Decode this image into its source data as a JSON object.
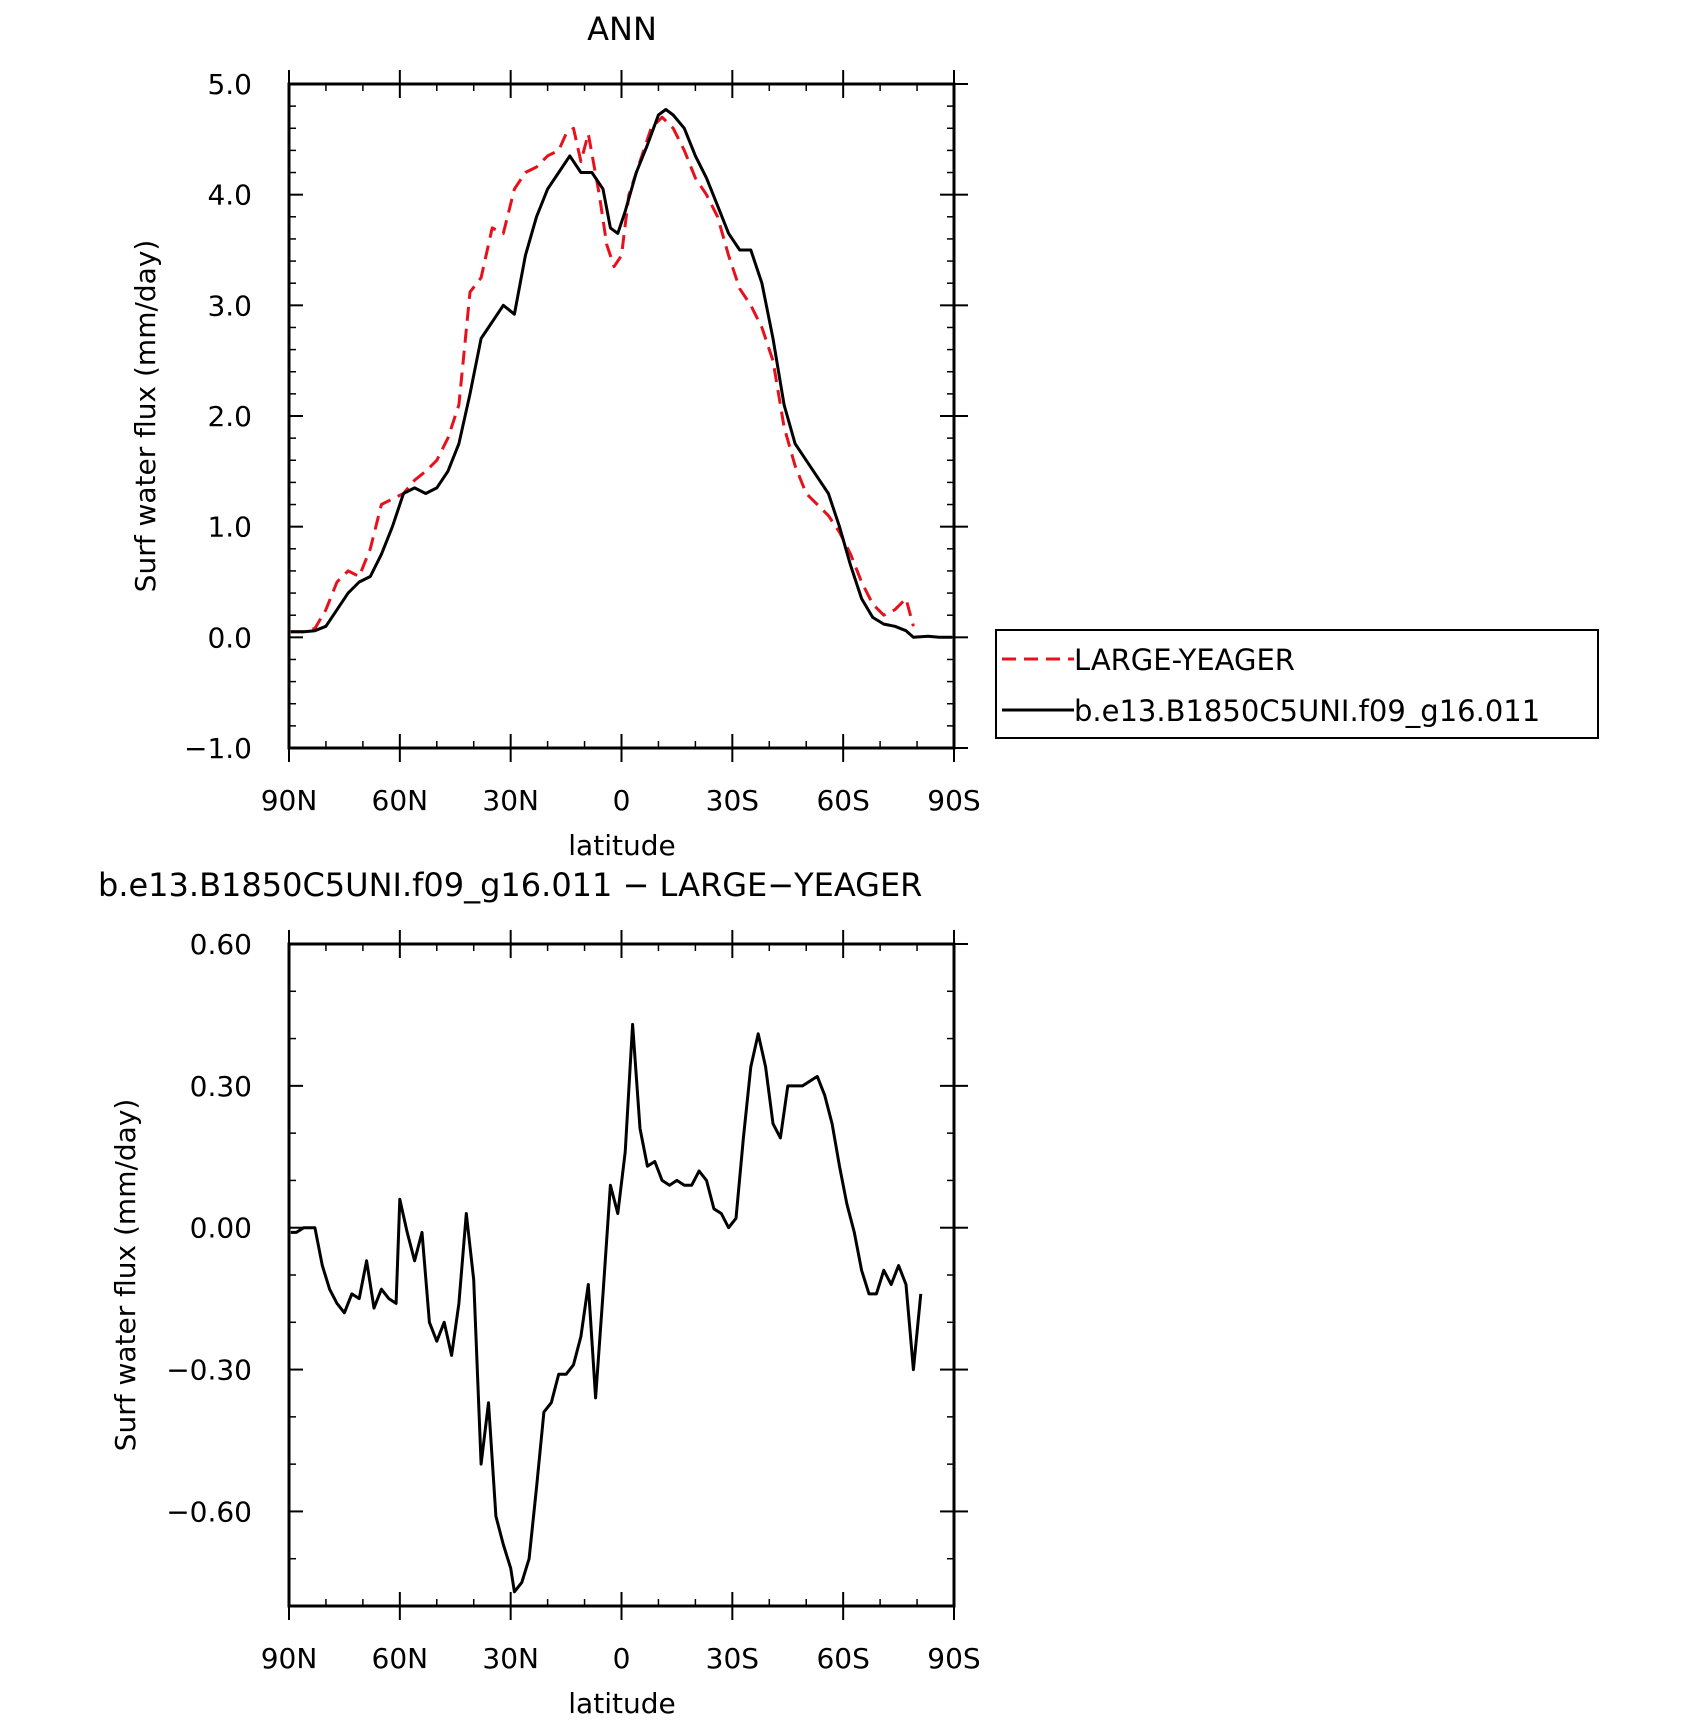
{
  "chart_data": [
    {
      "type": "line",
      "title": "ANN",
      "xlabel": "latitude",
      "ylabel": "Surf water flux (mm/day)",
      "xlim": [
        90,
        -90
      ],
      "ylim": [
        -1.0,
        5.0
      ],
      "grid": false,
      "legend_position": "right",
      "x_ticks": [
        {
          "value": 90,
          "label": "90N"
        },
        {
          "value": 60,
          "label": "60N"
        },
        {
          "value": 30,
          "label": "30N"
        },
        {
          "value": 0,
          "label": "0"
        },
        {
          "value": -30,
          "label": "30S"
        },
        {
          "value": -60,
          "label": "60S"
        },
        {
          "value": -90,
          "label": "90S"
        }
      ],
      "y_ticks": [
        {
          "value": 5.0,
          "label": "5.0"
        },
        {
          "value": 4.0,
          "label": "4.0"
        },
        {
          "value": 3.0,
          "label": "3.0"
        },
        {
          "value": 2.0,
          "label": "2.0"
        },
        {
          "value": 1.0,
          "label": "1.0"
        },
        {
          "value": 0.0,
          "label": "0.0"
        },
        {
          "value": -1.0,
          "label": "−1.0"
        }
      ],
      "series": [
        {
          "name": "LARGE-YEAGER",
          "color": "#e8111b",
          "dash": "dashed",
          "points": [
            [
              89.5,
              0.05
            ],
            [
              86,
              0.05
            ],
            [
              83,
              0.08
            ],
            [
              80,
              0.25
            ],
            [
              77,
              0.5
            ],
            [
              74,
              0.6
            ],
            [
              71,
              0.55
            ],
            [
              68,
              0.8
            ],
            [
              65,
              1.2
            ],
            [
              62,
              1.25
            ],
            [
              59,
              1.3
            ],
            [
              56,
              1.42
            ],
            [
              53,
              1.5
            ],
            [
              50,
              1.6
            ],
            [
              47,
              1.8
            ],
            [
              44,
              2.1
            ],
            [
              41,
              3.12
            ],
            [
              38,
              3.25
            ],
            [
              35,
              3.7
            ],
            [
              32,
              3.65
            ],
            [
              29,
              4.05
            ],
            [
              26,
              4.2
            ],
            [
              23,
              4.25
            ],
            [
              20,
              4.35
            ],
            [
              17,
              4.4
            ],
            [
              15,
              4.55
            ],
            [
              13,
              4.6
            ],
            [
              11,
              4.3
            ],
            [
              9,
              4.55
            ],
            [
              6,
              4.0
            ],
            [
              4,
              3.55
            ],
            [
              2,
              3.35
            ],
            [
              0,
              3.45
            ],
            [
              -2,
              4.0
            ],
            [
              -5,
              4.3
            ],
            [
              -8,
              4.6
            ],
            [
              -11,
              4.7
            ],
            [
              -14,
              4.6
            ],
            [
              -17,
              4.4
            ],
            [
              -20,
              4.15
            ],
            [
              -23,
              4.0
            ],
            [
              -26,
              3.8
            ],
            [
              -29,
              3.45
            ],
            [
              -32,
              3.15
            ],
            [
              -35,
              3.0
            ],
            [
              -38,
              2.8
            ],
            [
              -41,
              2.5
            ],
            [
              -44,
              1.9
            ],
            [
              -47,
              1.55
            ],
            [
              -50,
              1.3
            ],
            [
              -53,
              1.2
            ],
            [
              -56,
              1.1
            ],
            [
              -59,
              0.95
            ],
            [
              -62,
              0.75
            ],
            [
              -65,
              0.5
            ],
            [
              -68,
              0.3
            ],
            [
              -71,
              0.2
            ],
            [
              -74,
              0.25
            ],
            [
              -77,
              0.35
            ],
            [
              -79,
              0.1
            ]
          ]
        },
        {
          "name": "b.e13.B1850C5UNI.f09_g16.011",
          "color": "#000000",
          "dash": "solid",
          "points": [
            [
              89.5,
              0.05
            ],
            [
              86,
              0.05
            ],
            [
              83,
              0.06
            ],
            [
              80,
              0.1
            ],
            [
              77,
              0.25
            ],
            [
              74,
              0.4
            ],
            [
              71,
              0.5
            ],
            [
              68,
              0.55
            ],
            [
              65,
              0.75
            ],
            [
              62,
              1.0
            ],
            [
              59,
              1.3
            ],
            [
              56,
              1.35
            ],
            [
              53,
              1.3
            ],
            [
              50,
              1.35
            ],
            [
              47,
              1.5
            ],
            [
              44,
              1.75
            ],
            [
              41,
              2.2
            ],
            [
              38,
              2.7
            ],
            [
              35,
              2.85
            ],
            [
              32,
              3.0
            ],
            [
              29,
              2.92
            ],
            [
              26,
              3.45
            ],
            [
              23,
              3.8
            ],
            [
              20,
              4.05
            ],
            [
              17,
              4.2
            ],
            [
              14,
              4.35
            ],
            [
              11,
              4.2
            ],
            [
              8,
              4.2
            ],
            [
              5,
              4.05
            ],
            [
              3,
              3.7
            ],
            [
              1,
              3.65
            ],
            [
              -1,
              3.85
            ],
            [
              -4,
              4.2
            ],
            [
              -7,
              4.45
            ],
            [
              -10,
              4.72
            ],
            [
              -12,
              4.77
            ],
            [
              -14,
              4.72
            ],
            [
              -17,
              4.6
            ],
            [
              -20,
              4.35
            ],
            [
              -23,
              4.15
            ],
            [
              -26,
              3.9
            ],
            [
              -29,
              3.65
            ],
            [
              -32,
              3.5
            ],
            [
              -35,
              3.5
            ],
            [
              -38,
              3.2
            ],
            [
              -41,
              2.7
            ],
            [
              -44,
              2.1
            ],
            [
              -47,
              1.75
            ],
            [
              -50,
              1.6
            ],
            [
              -53,
              1.45
            ],
            [
              -56,
              1.3
            ],
            [
              -59,
              1.0
            ],
            [
              -62,
              0.65
            ],
            [
              -65,
              0.35
            ],
            [
              -68,
              0.18
            ],
            [
              -71,
              0.12
            ],
            [
              -74,
              0.1
            ],
            [
              -77,
              0.06
            ],
            [
              -79,
              0.0
            ],
            [
              -83,
              0.01
            ],
            [
              -86,
              0.0
            ],
            [
              -89.5,
              0.0
            ]
          ]
        }
      ]
    },
    {
      "type": "line",
      "title": "b.e13.B1850C5UNI.f09_g16.011 − LARGE−YEAGER",
      "xlabel": "latitude",
      "ylabel": "Surf water flux (mm/day)",
      "xlim": [
        90,
        -90
      ],
      "ylim": [
        -0.8,
        0.6
      ],
      "grid": false,
      "x_ticks": [
        {
          "value": 90,
          "label": "90N"
        },
        {
          "value": 60,
          "label": "60N"
        },
        {
          "value": 30,
          "label": "30N"
        },
        {
          "value": 0,
          "label": "0"
        },
        {
          "value": -30,
          "label": "30S"
        },
        {
          "value": -60,
          "label": "60S"
        },
        {
          "value": -90,
          "label": "90S"
        }
      ],
      "y_ticks": [
        {
          "value": 0.6,
          "label": "0.60"
        },
        {
          "value": 0.3,
          "label": "0.30"
        },
        {
          "value": 0.0,
          "label": "0.00"
        },
        {
          "value": -0.3,
          "label": "−0.30"
        },
        {
          "value": -0.6,
          "label": "−0.60"
        }
      ],
      "series": [
        {
          "color": "#000000",
          "dash": "solid",
          "points": [
            [
              89.5,
              -0.01
            ],
            [
              88,
              -0.01
            ],
            [
              86,
              0.0
            ],
            [
              83,
              0.0
            ],
            [
              81,
              -0.08
            ],
            [
              79,
              -0.13
            ],
            [
              77,
              -0.16
            ],
            [
              75,
              -0.18
            ],
            [
              73,
              -0.14
            ],
            [
              71,
              -0.15
            ],
            [
              69,
              -0.07
            ],
            [
              67,
              -0.17
            ],
            [
              65,
              -0.13
            ],
            [
              63,
              -0.15
            ],
            [
              61,
              -0.16
            ],
            [
              60,
              0.06
            ],
            [
              58,
              -0.01
            ],
            [
              56,
              -0.07
            ],
            [
              54,
              -0.01
            ],
            [
              52,
              -0.2
            ],
            [
              50,
              -0.24
            ],
            [
              48,
              -0.2
            ],
            [
              46,
              -0.27
            ],
            [
              44,
              -0.16
            ],
            [
              42,
              0.03
            ],
            [
              40,
              -0.11
            ],
            [
              38,
              -0.5
            ],
            [
              36,
              -0.37
            ],
            [
              34,
              -0.61
            ],
            [
              32,
              -0.67
            ],
            [
              30,
              -0.72
            ],
            [
              29,
              -0.77
            ],
            [
              27,
              -0.75
            ],
            [
              25,
              -0.7
            ],
            [
              23,
              -0.55
            ],
            [
              21,
              -0.39
            ],
            [
              19,
              -0.37
            ],
            [
              17,
              -0.31
            ],
            [
              15,
              -0.31
            ],
            [
              13,
              -0.29
            ],
            [
              11,
              -0.23
            ],
            [
              9,
              -0.12
            ],
            [
              7,
              -0.36
            ],
            [
              5,
              -0.14
            ],
            [
              3,
              0.09
            ],
            [
              1,
              0.03
            ],
            [
              -1,
              0.16
            ],
            [
              -3,
              0.43
            ],
            [
              -5,
              0.21
            ],
            [
              -7,
              0.13
            ],
            [
              -9,
              0.14
            ],
            [
              -11,
              0.1
            ],
            [
              -13,
              0.09
            ],
            [
              -15,
              0.1
            ],
            [
              -17,
              0.09
            ],
            [
              -19,
              0.09
            ],
            [
              -21,
              0.12
            ],
            [
              -23,
              0.1
            ],
            [
              -25,
              0.04
            ],
            [
              -27,
              0.03
            ],
            [
              -29,
              0.0
            ],
            [
              -31,
              0.02
            ],
            [
              -33,
              0.19
            ],
            [
              -35,
              0.34
            ],
            [
              -37,
              0.41
            ],
            [
              -39,
              0.34
            ],
            [
              -41,
              0.22
            ],
            [
              -43,
              0.19
            ],
            [
              -45,
              0.3
            ],
            [
              -47,
              0.3
            ],
            [
              -49,
              0.3
            ],
            [
              -51,
              0.31
            ],
            [
              -53,
              0.32
            ],
            [
              -55,
              0.28
            ],
            [
              -57,
              0.22
            ],
            [
              -59,
              0.13
            ],
            [
              -61,
              0.05
            ],
            [
              -63,
              -0.01
            ],
            [
              -65,
              -0.09
            ],
            [
              -67,
              -0.14
            ],
            [
              -69,
              -0.14
            ],
            [
              -71,
              -0.09
            ],
            [
              -73,
              -0.12
            ],
            [
              -75,
              -0.08
            ],
            [
              -77,
              -0.12
            ],
            [
              -79,
              -0.3
            ],
            [
              -81,
              -0.14
            ]
          ]
        }
      ]
    }
  ]
}
